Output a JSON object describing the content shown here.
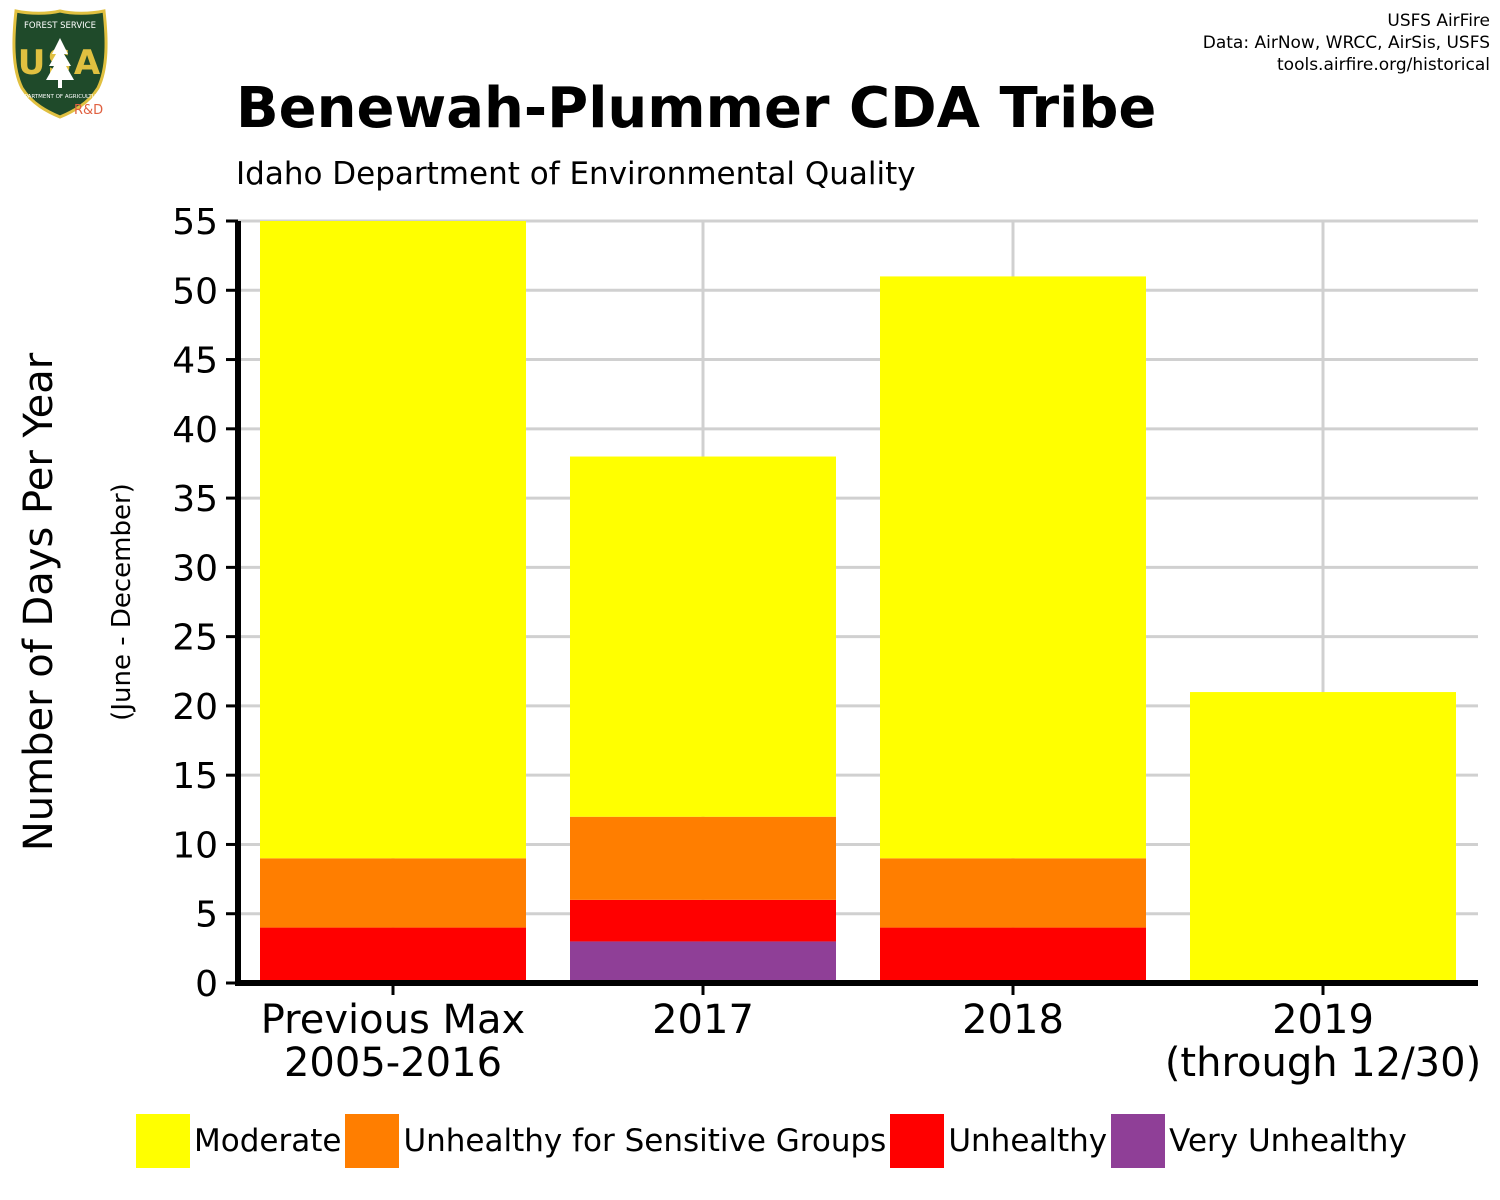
{
  "logo": {
    "top_text": "FOREST SERVICE",
    "initials": "USA",
    "bottom_text": "DEPARTMENT OF AGRICULTURE",
    "badge": "R&D"
  },
  "credits": [
    "USFS AirFire",
    "Data: AirNow, WRCC, AirSis, USFS",
    "tools.airfire.org/historical"
  ],
  "title": "Benewah-Plummer CDA Tribe",
  "subtitle": "Idaho Department of Environmental Quality",
  "chart_data": {
    "type": "bar",
    "stacked": true,
    "categories": [
      "Previous Max\n2005-2016",
      "2017",
      "2018",
      "2019\n(through 12/30)"
    ],
    "series": [
      {
        "name": "Very Unhealthy",
        "color": "#8F3F97",
        "values": [
          0,
          3,
          0,
          0
        ]
      },
      {
        "name": "Unhealthy",
        "color": "#FF0000",
        "values": [
          4,
          3,
          4,
          0
        ]
      },
      {
        "name": "Unhealthy for Sensitive Groups",
        "color": "#FF7E00",
        "values": [
          5,
          6,
          5,
          0
        ]
      },
      {
        "name": "Moderate",
        "color": "#FFFF00",
        "values": [
          46,
          26,
          42,
          21
        ]
      }
    ],
    "ylabel": "Number of Days Per Year",
    "ylabel_sub": "(June - December)",
    "ylim": [
      0,
      55
    ],
    "yticks": [
      0,
      5,
      10,
      15,
      20,
      25,
      30,
      35,
      40,
      45,
      50,
      55
    ],
    "grid": true,
    "legend": {
      "position": "bottom",
      "order": [
        "Moderate",
        "Unhealthy for Sensitive Groups",
        "Unhealthy",
        "Very Unhealthy"
      ]
    }
  }
}
